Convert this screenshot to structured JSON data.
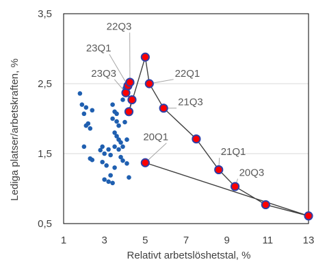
{
  "chart_data": {
    "type": "scatter",
    "xlabel": "Relativt arbetslöshetstal, %",
    "ylabel": "Lediga platser/arbetskraften, %",
    "xlim": [
      1,
      13
    ],
    "ylim": [
      0.5,
      3.5
    ],
    "xticks": [
      1,
      3,
      5,
      7,
      9,
      11,
      13
    ],
    "yticks": [
      0.5,
      1.5,
      2.5,
      3.5
    ],
    "xtick_labels": [
      "1",
      "3",
      "5",
      "7",
      "9",
      "11",
      "13"
    ],
    "ytick_labels": [
      "0,5",
      "1,5",
      "2,5",
      "3,5"
    ],
    "grid": "horizontal",
    "colors": {
      "historical": "#1f5fb0",
      "recent_fill": "#ff0000",
      "recent_edge": "#2f3fa6",
      "path_line": "#404040",
      "leader_line": "#a6a6a6"
    },
    "series": [
      {
        "points": [
          {
            "x": 1.8,
            "y": 2.36
          },
          {
            "x": 1.9,
            "y": 2.2
          },
          {
            "x": 2.1,
            "y": 2.16
          },
          {
            "x": 2.4,
            "y": 2.12
          },
          {
            "x": 2.0,
            "y": 2.07
          },
          {
            "x": 2.2,
            "y": 1.93
          },
          {
            "x": 2.1,
            "y": 1.9
          },
          {
            "x": 2.3,
            "y": 1.86
          },
          {
            "x": 2.0,
            "y": 1.6
          },
          {
            "x": 2.3,
            "y": 1.43
          },
          {
            "x": 2.4,
            "y": 1.41
          },
          {
            "x": 2.8,
            "y": 1.55
          },
          {
            "x": 2.9,
            "y": 1.6
          },
          {
            "x": 3.0,
            "y": 1.5
          },
          {
            "x": 2.9,
            "y": 1.38
          },
          {
            "x": 3.1,
            "y": 1.33
          },
          {
            "x": 3.2,
            "y": 1.56
          },
          {
            "x": 3.3,
            "y": 1.48
          },
          {
            "x": 3.0,
            "y": 1.13
          },
          {
            "x": 3.2,
            "y": 1.1
          },
          {
            "x": 3.4,
            "y": 1.08
          },
          {
            "x": 3.3,
            "y": 1.19
          },
          {
            "x": 3.4,
            "y": 2.2
          },
          {
            "x": 3.5,
            "y": 2.1
          },
          {
            "x": 3.6,
            "y": 2.07
          },
          {
            "x": 3.4,
            "y": 2.0
          },
          {
            "x": 3.6,
            "y": 1.96
          },
          {
            "x": 3.7,
            "y": 1.9
          },
          {
            "x": 3.5,
            "y": 1.8
          },
          {
            "x": 3.6,
            "y": 1.75
          },
          {
            "x": 3.7,
            "y": 1.7
          },
          {
            "x": 3.8,
            "y": 1.66
          },
          {
            "x": 3.5,
            "y": 1.6
          },
          {
            "x": 3.7,
            "y": 1.56
          },
          {
            "x": 3.9,
            "y": 1.6
          },
          {
            "x": 3.8,
            "y": 1.45
          },
          {
            "x": 3.9,
            "y": 1.4
          },
          {
            "x": 4.1,
            "y": 1.36
          },
          {
            "x": 4.0,
            "y": 1.95
          },
          {
            "x": 4.1,
            "y": 1.7
          },
          {
            "x": 4.2,
            "y": 1.16
          },
          {
            "x": 3.5,
            "y": 1.3
          },
          {
            "x": 3.9,
            "y": 2.27
          },
          {
            "x": 4.0,
            "y": 2.44
          }
        ]
      },
      {
        "points": [
          {
            "x": 5.0,
            "y": 2.88,
            "label": ""
          },
          {
            "x": 5.2,
            "y": 2.5,
            "label": "22Q1"
          },
          {
            "x": 5.9,
            "y": 2.15,
            "label": "21Q3"
          },
          {
            "x": 7.5,
            "y": 1.71,
            "label": ""
          },
          {
            "x": 8.6,
            "y": 1.27,
            "label": "21Q1"
          },
          {
            "x": 9.4,
            "y": 1.03,
            "label": "20Q3"
          },
          {
            "x": 10.9,
            "y": 0.77,
            "label": ""
          },
          {
            "x": 13.0,
            "y": 0.61,
            "label": ""
          },
          {
            "x": 5.0,
            "y": 1.37,
            "label": "20Q1"
          },
          {
            "x": 4.2,
            "y": 2.1,
            "label": ""
          },
          {
            "x": 4.35,
            "y": 2.27,
            "label": ""
          },
          {
            "x": 4.05,
            "y": 2.37,
            "label": "23Q3"
          },
          {
            "x": 4.15,
            "y": 2.47,
            "label": "23Q1"
          },
          {
            "x": 4.25,
            "y": 2.52,
            "label": "22Q3"
          }
        ],
        "path_order": [
          8,
          7,
          6,
          5,
          4,
          3,
          2,
          1,
          0,
          9,
          10,
          11,
          12,
          13
        ]
      }
    ],
    "annotations": [
      {
        "text": "22Q3",
        "point": 13,
        "x": 3.1,
        "y": 3.27
      },
      {
        "text": "23Q1",
        "point": 12,
        "x": 2.1,
        "y": 2.96
      },
      {
        "text": "23Q3",
        "point": 11,
        "x": 2.35,
        "y": 2.6
      },
      {
        "text": "22Q1",
        "point": 1,
        "x": 6.45,
        "y": 2.6
      },
      {
        "text": "21Q3",
        "point": 2,
        "x": 6.6,
        "y": 2.19
      },
      {
        "text": "20Q1",
        "point": 8,
        "x": 4.9,
        "y": 1.69
      },
      {
        "text": "21Q1",
        "point": 4,
        "x": 8.7,
        "y": 1.48
      },
      {
        "text": "20Q3",
        "point": 5,
        "x": 9.6,
        "y": 1.18
      }
    ]
  }
}
